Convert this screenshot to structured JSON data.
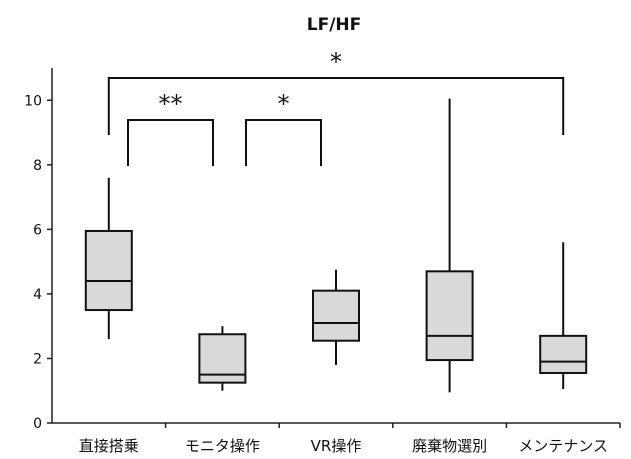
{
  "chart_data": {
    "type": "box",
    "title": "LF/HF",
    "xlabel": "",
    "ylabel": "",
    "ylim": [
      0,
      11
    ],
    "yticks": [
      0,
      2,
      4,
      6,
      8,
      10
    ],
    "categories": [
      "直接搭乗",
      "モニタ操作",
      "VR操作",
      "廃棄物選別",
      "メンテナンス"
    ],
    "boxes": [
      {
        "min": 2.6,
        "q1": 3.5,
        "median": 4.4,
        "q3": 5.95,
        "max": 7.6
      },
      {
        "min": 1.0,
        "q1": 1.25,
        "median": 1.5,
        "q3": 2.75,
        "max": 3.0
      },
      {
        "min": 1.8,
        "q1": 2.55,
        "median": 3.1,
        "q3": 4.1,
        "max": 4.75
      },
      {
        "min": 0.95,
        "q1": 1.95,
        "median": 2.7,
        "q3": 4.7,
        "max": 10.05
      },
      {
        "min": 1.05,
        "q1": 1.55,
        "median": 1.9,
        "q3": 2.7,
        "max": 5.6
      }
    ],
    "significance": [
      {
        "from": 0,
        "to": 4,
        "label": "*"
      },
      {
        "from": 0,
        "to": 1,
        "label": "**"
      },
      {
        "from": 1,
        "to": 2,
        "label": "*"
      }
    ]
  }
}
